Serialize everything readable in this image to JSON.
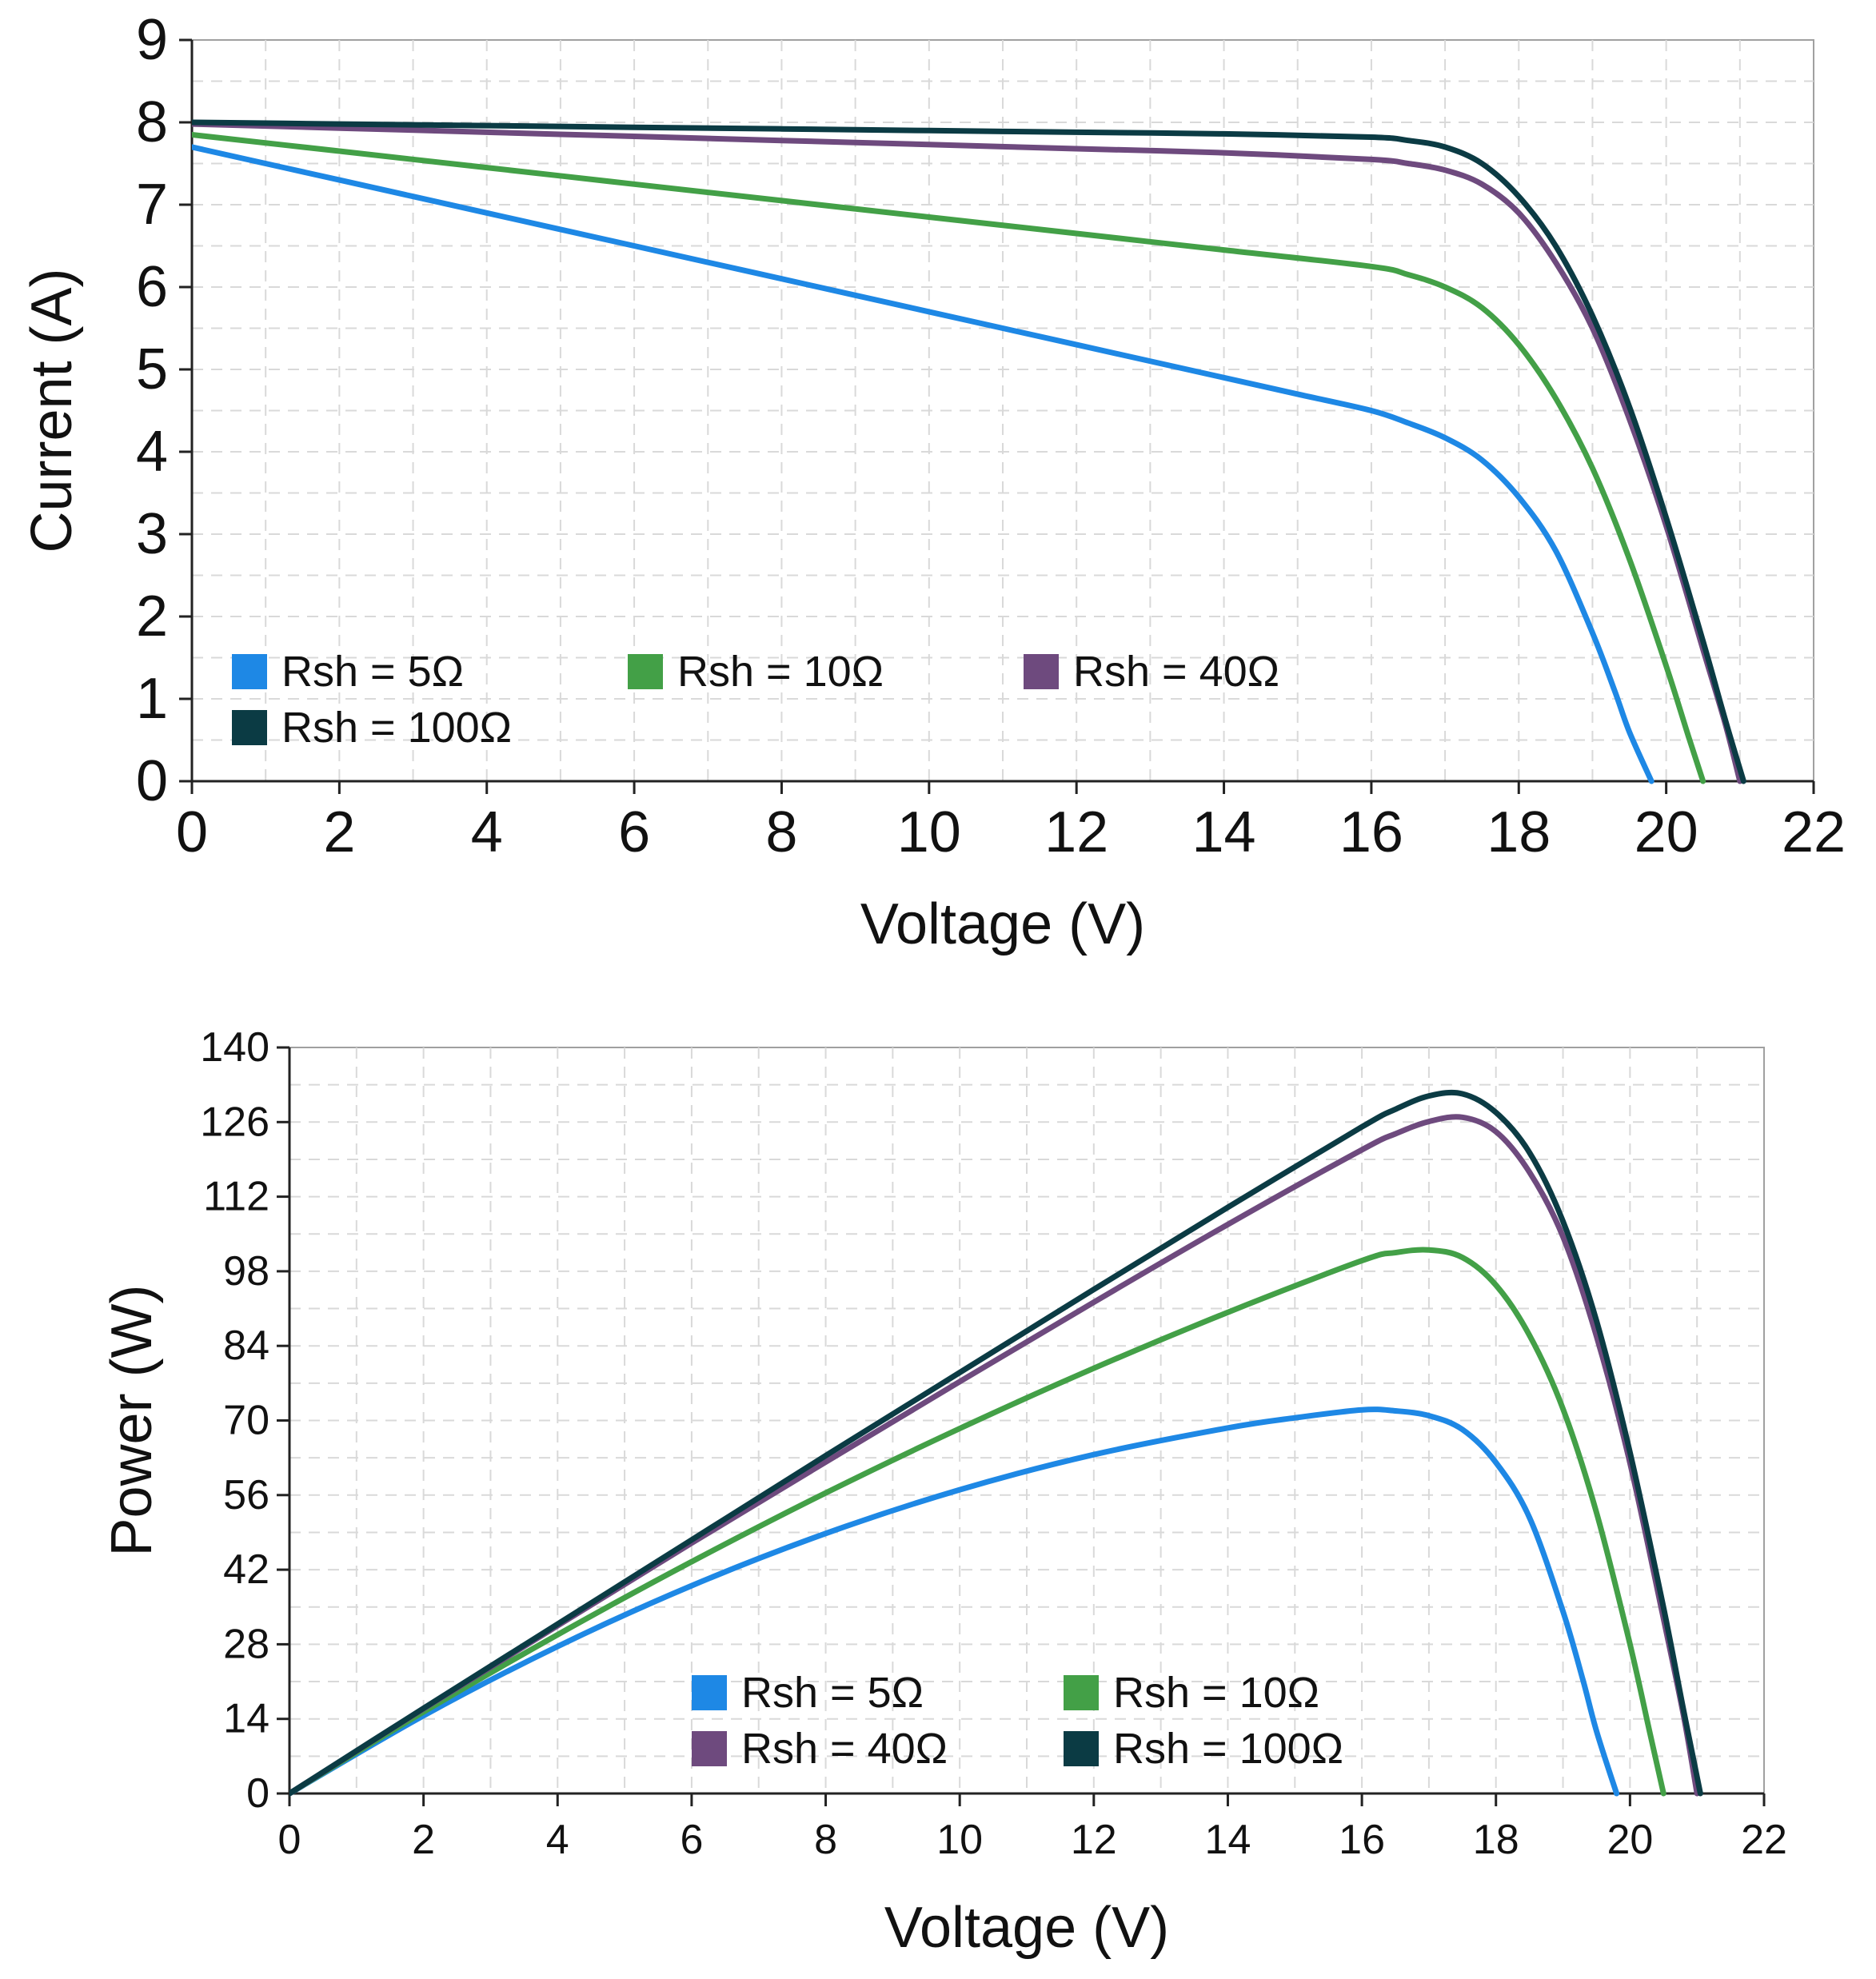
{
  "figure": {
    "background": "#ffffff",
    "grid_color": "#d9d9d9",
    "axis_color": "#222222",
    "frame_color": "#a0a0a0"
  },
  "series_styles": [
    {
      "name": "Rsh = 5Ω",
      "color": "#1e88e5"
    },
    {
      "name": "Rsh = 10Ω",
      "color": "#43a047"
    },
    {
      "name": "Rsh = 40Ω",
      "color": "#6e4a7e"
    },
    {
      "name": "Rsh = 100Ω",
      "color": "#0b3b44"
    }
  ],
  "chart_data": [
    {
      "type": "line",
      "title": "",
      "xlabel": "Voltage (V)",
      "ylabel": "Current (A)",
      "xlim": [
        0,
        22
      ],
      "ylim": [
        0,
        9
      ],
      "xticks": [
        0,
        2,
        4,
        6,
        8,
        10,
        12,
        14,
        16,
        18,
        20,
        22
      ],
      "yticks": [
        0,
        1,
        2,
        3,
        4,
        5,
        6,
        7,
        8,
        9
      ],
      "grid": true,
      "legend": {
        "position": "bottom-left",
        "columns": 3
      },
      "series": [
        {
          "name": "Rsh = 5Ω",
          "color": "#1e88e5",
          "x": [
            0,
            2,
            4,
            6,
            8,
            10,
            12,
            14,
            15,
            16,
            16.5,
            17,
            17.5,
            18,
            18.5,
            19,
            19.3,
            19.5,
            19.8
          ],
          "y": [
            7.7,
            7.3,
            6.9,
            6.5,
            6.1,
            5.7,
            5.3,
            4.9,
            4.7,
            4.5,
            4.35,
            4.17,
            3.9,
            3.45,
            2.8,
            1.8,
            1.1,
            0.6,
            0
          ]
        },
        {
          "name": "Rsh = 10Ω",
          "color": "#43a047",
          "x": [
            0,
            2,
            4,
            6,
            8,
            10,
            12,
            14,
            16,
            16.5,
            17,
            17.5,
            18,
            18.5,
            19,
            19.5,
            20,
            20.3,
            20.5
          ],
          "y": [
            7.85,
            7.65,
            7.45,
            7.25,
            7.05,
            6.85,
            6.65,
            6.45,
            6.25,
            6.15,
            6.0,
            5.75,
            5.3,
            4.65,
            3.8,
            2.7,
            1.4,
            0.55,
            0
          ]
        },
        {
          "name": "Rsh = 40Ω",
          "color": "#6e4a7e",
          "x": [
            0,
            2,
            4,
            6,
            8,
            10,
            12,
            14,
            16,
            16.5,
            17,
            17.5,
            18,
            18.5,
            19,
            19.5,
            20,
            20.5,
            20.8,
            21.0
          ],
          "y": [
            7.98,
            7.93,
            7.88,
            7.83,
            7.78,
            7.73,
            7.68,
            7.63,
            7.55,
            7.5,
            7.42,
            7.25,
            6.9,
            6.3,
            5.5,
            4.4,
            3.1,
            1.6,
            0.7,
            0
          ]
        },
        {
          "name": "Rsh = 100Ω",
          "color": "#0b3b44",
          "x": [
            0,
            2,
            4,
            6,
            8,
            10,
            12,
            14,
            16,
            16.5,
            17,
            17.5,
            18,
            18.5,
            19,
            19.5,
            20,
            20.5,
            20.8,
            21.05
          ],
          "y": [
            8.0,
            7.98,
            7.96,
            7.94,
            7.92,
            7.9,
            7.88,
            7.86,
            7.82,
            7.78,
            7.7,
            7.5,
            7.1,
            6.5,
            5.65,
            4.55,
            3.2,
            1.7,
            0.75,
            0
          ]
        }
      ]
    },
    {
      "type": "line",
      "title": "",
      "xlabel": "Voltage (V)",
      "ylabel": "Power (W)",
      "xlim": [
        0,
        22
      ],
      "ylim": [
        0,
        140
      ],
      "xticks": [
        0,
        2,
        4,
        6,
        8,
        10,
        12,
        14,
        16,
        18,
        20,
        22
      ],
      "yticks": [
        0,
        14,
        28,
        42,
        56,
        70,
        84,
        98,
        112,
        126,
        140
      ],
      "grid": true,
      "legend": {
        "position": "bottom-center",
        "columns": 2
      },
      "series": [
        {
          "name": "Rsh = 5Ω",
          "color": "#1e88e5",
          "x": [
            0,
            2,
            4,
            6,
            8,
            10,
            12,
            14,
            15,
            16,
            16.5,
            17,
            17.5,
            18,
            18.5,
            19,
            19.3,
            19.5,
            19.8
          ],
          "y": [
            0,
            14.6,
            27.6,
            39.0,
            48.8,
            57.0,
            63.6,
            68.6,
            70.5,
            72.0,
            71.8,
            70.9,
            68.3,
            62.1,
            51.8,
            34.2,
            21.2,
            11.7,
            0
          ]
        },
        {
          "name": "Rsh = 10Ω",
          "color": "#43a047",
          "x": [
            0,
            2,
            4,
            6,
            8,
            10,
            12,
            14,
            16,
            16.5,
            17,
            17.5,
            18,
            18.5,
            19,
            19.5,
            20,
            20.3,
            20.5
          ],
          "y": [
            0,
            15.3,
            29.8,
            43.5,
            56.4,
            68.5,
            79.8,
            90.3,
            100.0,
            101.5,
            102.0,
            100.6,
            95.4,
            86.0,
            72.2,
            52.7,
            28.0,
            11.2,
            0
          ]
        },
        {
          "name": "Rsh = 40Ω",
          "color": "#6e4a7e",
          "x": [
            0,
            2,
            4,
            6,
            8,
            10,
            12,
            14,
            16,
            16.5,
            17,
            17.5,
            18,
            18.5,
            19,
            19.5,
            20,
            20.5,
            20.8,
            21.0
          ],
          "y": [
            0,
            15.9,
            31.5,
            47.0,
            62.2,
            77.3,
            92.2,
            106.8,
            120.8,
            123.8,
            126.1,
            126.9,
            124.2,
            116.6,
            104.5,
            85.8,
            62.0,
            32.8,
            14.6,
            0
          ]
        },
        {
          "name": "Rsh = 100Ω",
          "color": "#0b3b44",
          "x": [
            0,
            2,
            4,
            6,
            8,
            10,
            12,
            14,
            16,
            16.5,
            17,
            17.5,
            18,
            18.5,
            19,
            19.5,
            20,
            20.5,
            20.8,
            21.05
          ],
          "y": [
            0,
            16.0,
            31.8,
            47.6,
            63.4,
            79.0,
            94.6,
            110.0,
            125.1,
            128.4,
            130.9,
            131.3,
            127.8,
            120.3,
            107.4,
            88.7,
            64.0,
            34.9,
            15.6,
            0
          ]
        }
      ]
    }
  ]
}
